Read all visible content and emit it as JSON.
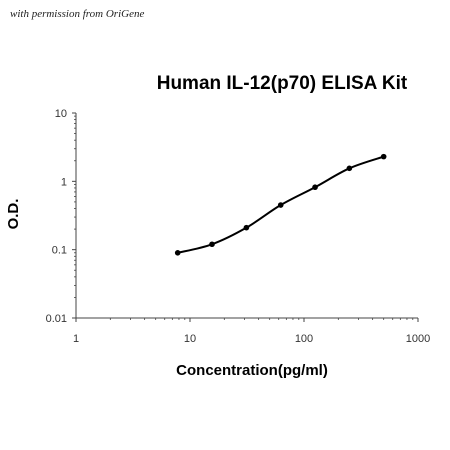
{
  "watermark": "with permission from OriGene",
  "chart_data": {
    "type": "line",
    "title": "Human IL-12(p70) ELISA Kit",
    "xlabel": "Concentration(pg/ml)",
    "ylabel": "O.D.",
    "x_scale": "log",
    "y_scale": "log",
    "xlim": [
      1,
      1000
    ],
    "ylim": [
      0.01,
      10
    ],
    "x_ticks": [
      "1",
      "10",
      "100",
      "1000"
    ],
    "y_ticks": [
      "0.01",
      "0.1",
      "1",
      "10"
    ],
    "grid": false,
    "legend": "none",
    "series": [
      {
        "x": [
          7.8,
          15.6,
          31.25,
          62.5,
          125,
          250,
          500
        ],
        "y": [
          0.09,
          0.12,
          0.21,
          0.45,
          0.82,
          1.55,
          2.3
        ]
      }
    ],
    "colors": {
      "line": "#000000",
      "points": "#000000",
      "axis": "#444444"
    }
  }
}
